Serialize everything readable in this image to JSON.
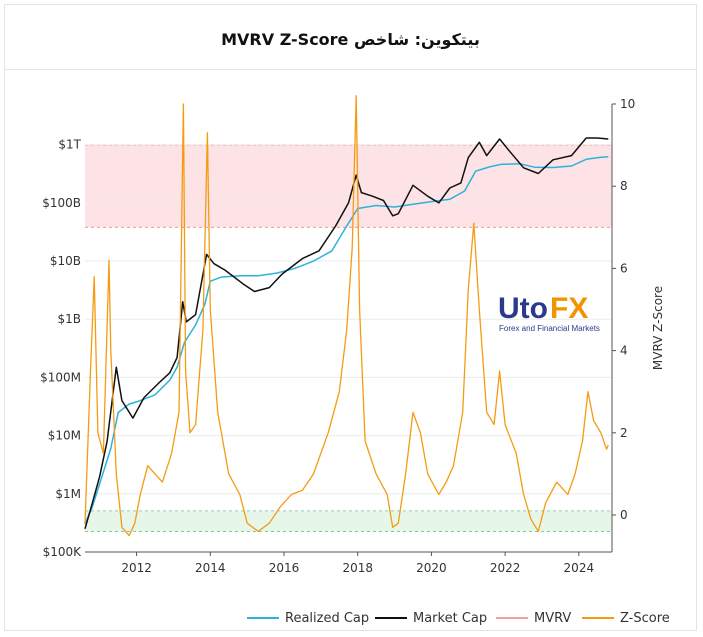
{
  "title": "بیتکوین: شاخص MVRV Z-Score",
  "logo": {
    "main_1": "Uto",
    "main_2": "FX",
    "subtitle": "Forex and Financial Markets"
  },
  "colors": {
    "realized": "#2cb2dc",
    "market": "#111111",
    "mvrv": "#f4a0a0",
    "zscore": "#f59b12",
    "red_band": "#fde3e5",
    "green_band": "#e6f7ea"
  },
  "chart_data": {
    "type": "line",
    "x_axis": {
      "ticks": [
        "2012",
        "2014",
        "2016",
        "2018",
        "2020",
        "2022",
        "2024"
      ],
      "range": [
        2010.6,
        2024.9
      ]
    },
    "y_left": {
      "label": "",
      "scale": "log",
      "ticks": [
        "$100K",
        "$1M",
        "$10M",
        "$100M",
        "$1B",
        "$10B",
        "$100B",
        "$1T"
      ],
      "range": [
        100000,
        5000000000000
      ]
    },
    "y_right": {
      "label": "MVRV Z-Score",
      "ticks": [
        "0",
        "2",
        "4",
        "6",
        "8",
        "10"
      ],
      "range": [
        -0.9,
        10
      ]
    },
    "bands": {
      "red_zone": [
        7,
        9
      ],
      "green_zone": [
        -0.4,
        0.1
      ]
    },
    "legend": {
      "position": "bottom-right",
      "items": [
        "Realized Cap",
        "Market Cap",
        "MVRV",
        "Z-Score"
      ]
    },
    "series": [
      {
        "name": "Realized Cap",
        "axis": "left",
        "points": [
          [
            2010.6,
            300000
          ],
          [
            2010.8,
            600000
          ],
          [
            2011.0,
            1500000
          ],
          [
            2011.3,
            6000000
          ],
          [
            2011.5,
            25000000
          ],
          [
            2011.8,
            35000000
          ],
          [
            2012.0,
            38000000
          ],
          [
            2012.5,
            50000000
          ],
          [
            2012.9,
            90000000
          ],
          [
            2013.1,
            150000000
          ],
          [
            2013.3,
            400000000
          ],
          [
            2013.6,
            800000000
          ],
          [
            2013.85,
            1800000000
          ],
          [
            2014.0,
            4500000000
          ],
          [
            2014.3,
            5300000000
          ],
          [
            2014.8,
            5600000000
          ],
          [
            2015.3,
            5600000000
          ],
          [
            2015.8,
            6200000000
          ],
          [
            2016.3,
            7500000000
          ],
          [
            2016.8,
            10000000000
          ],
          [
            2017.3,
            15000000000
          ],
          [
            2017.7,
            40000000000
          ],
          [
            2018.0,
            80000000000
          ],
          [
            2018.5,
            90000000000
          ],
          [
            2019.0,
            85000000000
          ],
          [
            2019.5,
            95000000000
          ],
          [
            2020.0,
            105000000000
          ],
          [
            2020.5,
            115000000000
          ],
          [
            2020.9,
            160000000000
          ],
          [
            2021.2,
            350000000000
          ],
          [
            2021.6,
            420000000000
          ],
          [
            2021.9,
            460000000000
          ],
          [
            2022.4,
            470000000000
          ],
          [
            2022.8,
            410000000000
          ],
          [
            2023.3,
            405000000000
          ],
          [
            2023.8,
            430000000000
          ],
          [
            2024.2,
            560000000000
          ],
          [
            2024.6,
            610000000000
          ],
          [
            2024.8,
            620000000000
          ]
        ]
      },
      {
        "name": "Market Cap",
        "axis": "left",
        "points": [
          [
            2010.6,
            250000
          ],
          [
            2010.8,
            700000
          ],
          [
            2011.0,
            2000000
          ],
          [
            2011.2,
            8000000
          ],
          [
            2011.45,
            150000000
          ],
          [
            2011.6,
            40000000
          ],
          [
            2011.9,
            20000000
          ],
          [
            2012.2,
            45000000
          ],
          [
            2012.6,
            80000000
          ],
          [
            2012.9,
            120000000
          ],
          [
            2013.1,
            220000000
          ],
          [
            2013.25,
            2000000000
          ],
          [
            2013.35,
            900000000
          ],
          [
            2013.6,
            1200000000
          ],
          [
            2013.9,
            13000000000
          ],
          [
            2014.1,
            9000000000
          ],
          [
            2014.4,
            7000000000
          ],
          [
            2014.9,
            4000000000
          ],
          [
            2015.2,
            3000000000
          ],
          [
            2015.6,
            3500000000
          ],
          [
            2015.95,
            6000000000
          ],
          [
            2016.5,
            11000000000
          ],
          [
            2016.95,
            15000000000
          ],
          [
            2017.4,
            40000000000
          ],
          [
            2017.75,
            100000000000
          ],
          [
            2017.96,
            300000000000
          ],
          [
            2018.1,
            150000000000
          ],
          [
            2018.4,
            130000000000
          ],
          [
            2018.7,
            110000000000
          ],
          [
            2018.95,
            60000000000
          ],
          [
            2019.1,
            65000000000
          ],
          [
            2019.5,
            200000000000
          ],
          [
            2019.9,
            130000000000
          ],
          [
            2020.2,
            100000000000
          ],
          [
            2020.5,
            180000000000
          ],
          [
            2020.8,
            220000000000
          ],
          [
            2021.0,
            600000000000
          ],
          [
            2021.3,
            1100000000000
          ],
          [
            2021.5,
            650000000000
          ],
          [
            2021.85,
            1250000000000
          ],
          [
            2022.1,
            800000000000
          ],
          [
            2022.5,
            400000000000
          ],
          [
            2022.9,
            320000000000
          ],
          [
            2023.3,
            550000000000
          ],
          [
            2023.8,
            650000000000
          ],
          [
            2024.2,
            1300000000000
          ],
          [
            2024.5,
            1300000000000
          ],
          [
            2024.8,
            1250000000000
          ]
        ]
      },
      {
        "name": "Z-Score",
        "axis": "right",
        "points": [
          [
            2010.6,
            -0.2
          ],
          [
            2010.75,
            3.5
          ],
          [
            2010.85,
            5.8
          ],
          [
            2010.95,
            2.0
          ],
          [
            2011.1,
            1.5
          ],
          [
            2011.25,
            6.2
          ],
          [
            2011.3,
            4.0
          ],
          [
            2011.45,
            1.0
          ],
          [
            2011.6,
            -0.3
          ],
          [
            2011.8,
            -0.5
          ],
          [
            2011.95,
            -0.2
          ],
          [
            2012.1,
            0.5
          ],
          [
            2012.3,
            1.2
          ],
          [
            2012.5,
            1.0
          ],
          [
            2012.7,
            0.8
          ],
          [
            2012.95,
            1.5
          ],
          [
            2013.15,
            2.5
          ],
          [
            2013.27,
            10.0
          ],
          [
            2013.33,
            3.5
          ],
          [
            2013.45,
            2.0
          ],
          [
            2013.6,
            2.2
          ],
          [
            2013.8,
            4.5
          ],
          [
            2013.92,
            9.3
          ],
          [
            2014.0,
            5.0
          ],
          [
            2014.2,
            2.5
          ],
          [
            2014.5,
            1.0
          ],
          [
            2014.8,
            0.5
          ],
          [
            2015.0,
            -0.2
          ],
          [
            2015.3,
            -0.4
          ],
          [
            2015.6,
            -0.2
          ],
          [
            2015.9,
            0.2
          ],
          [
            2016.2,
            0.5
          ],
          [
            2016.5,
            0.6
          ],
          [
            2016.8,
            1.0
          ],
          [
            2017.2,
            2.0
          ],
          [
            2017.5,
            3.0
          ],
          [
            2017.7,
            4.5
          ],
          [
            2017.85,
            6.5
          ],
          [
            2017.96,
            10.2
          ],
          [
            2018.05,
            5.0
          ],
          [
            2018.2,
            1.8
          ],
          [
            2018.5,
            1.0
          ],
          [
            2018.8,
            0.5
          ],
          [
            2018.95,
            -0.3
          ],
          [
            2019.1,
            -0.2
          ],
          [
            2019.3,
            1.0
          ],
          [
            2019.5,
            2.5
          ],
          [
            2019.7,
            2.0
          ],
          [
            2019.9,
            1.0
          ],
          [
            2020.2,
            0.5
          ],
          [
            2020.4,
            0.8
          ],
          [
            2020.6,
            1.2
          ],
          [
            2020.85,
            2.5
          ],
          [
            2021.0,
            5.5
          ],
          [
            2021.15,
            7.1
          ],
          [
            2021.3,
            5.0
          ],
          [
            2021.5,
            2.5
          ],
          [
            2021.7,
            2.2
          ],
          [
            2021.85,
            3.5
          ],
          [
            2022.0,
            2.2
          ],
          [
            2022.3,
            1.5
          ],
          [
            2022.5,
            0.5
          ],
          [
            2022.7,
            -0.1
          ],
          [
            2022.9,
            -0.4
          ],
          [
            2023.1,
            0.3
          ],
          [
            2023.4,
            0.8
          ],
          [
            2023.7,
            0.5
          ],
          [
            2023.9,
            1.0
          ],
          [
            2024.1,
            1.8
          ],
          [
            2024.25,
            3.0
          ],
          [
            2024.4,
            2.3
          ],
          [
            2024.6,
            2.0
          ],
          [
            2024.75,
            1.6
          ],
          [
            2024.8,
            1.7
          ]
        ]
      },
      {
        "name": "MVRV",
        "axis": "right",
        "points": []
      }
    ]
  }
}
